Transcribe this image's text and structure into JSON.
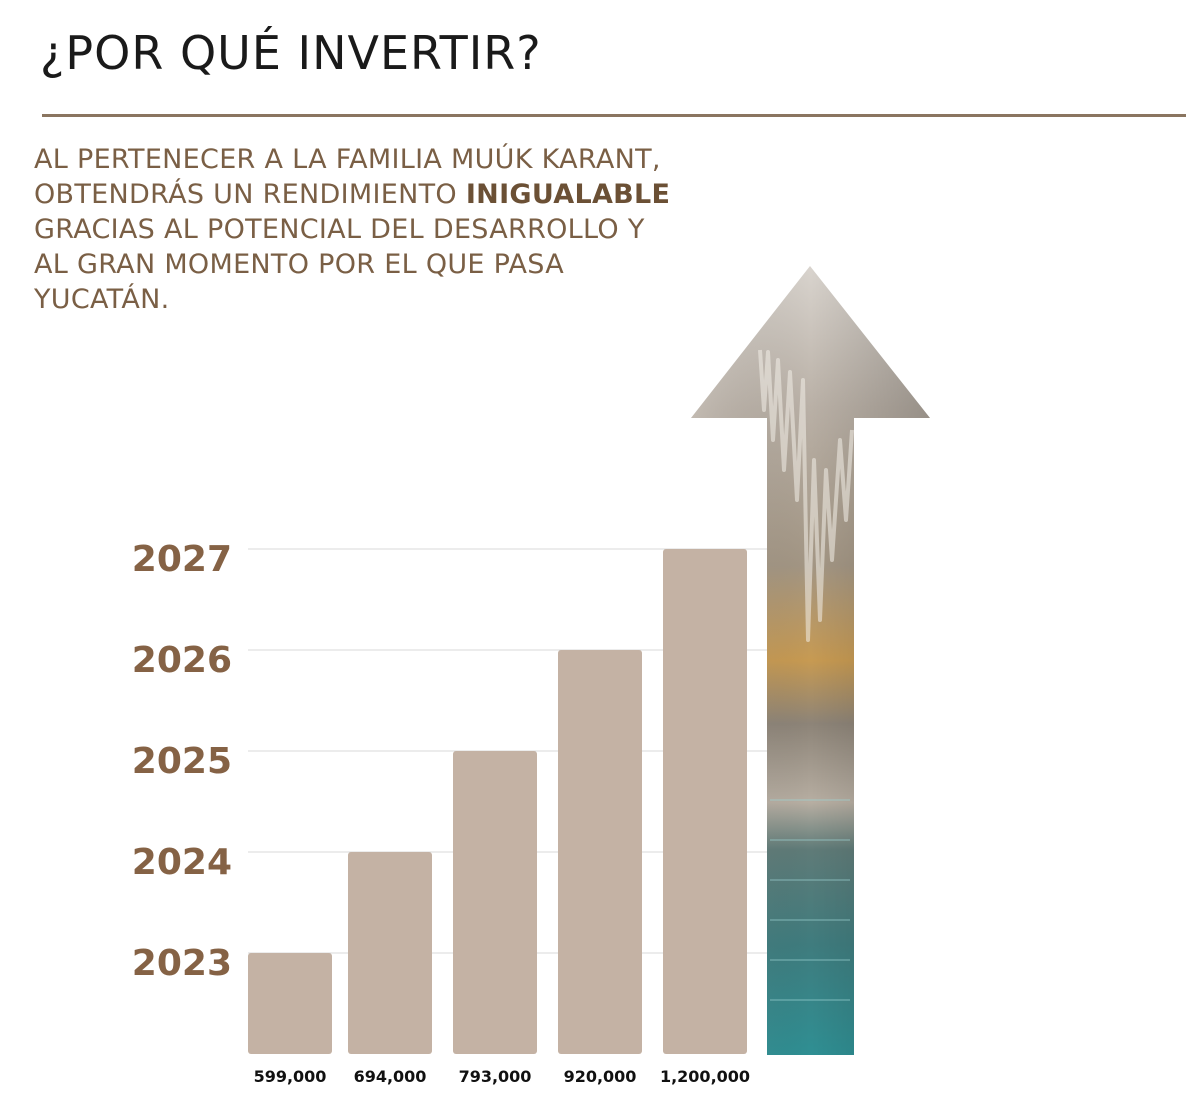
{
  "title": "¿POR QUÉ INVERTIR?",
  "intro": {
    "before": "AL PERTENECER A LA FAMILIA MUÚK KARANT, OBTENDRÁS  UN RENDIMIENTO ",
    "highlight": "INIGUALABLE",
    "after": " GRACIAS AL POTENCIAL DEL DESARROLLO Y AL GRAN MOMENTO POR EL QUE PASA YUCATÁN."
  },
  "colors": {
    "bar": "#c4b2a4",
    "grid": "#d9d9d9",
    "year_text": "#856245",
    "accent_rule": "#8a7560"
  },
  "arrow_image": "cave-cenote-arrow",
  "chart_data": {
    "type": "bar",
    "categories": [
      "2023",
      "2024",
      "2025",
      "2026",
      "2027"
    ],
    "values": [
      599000,
      694000,
      793000,
      920000,
      1200000
    ],
    "value_labels": [
      "599,000",
      "694,000",
      "793,000",
      "920,000",
      "1,200,000"
    ],
    "y_tick_labels": [
      "2023",
      "2024",
      "2025",
      "2026",
      "2027"
    ],
    "grid": true,
    "title": "",
    "xlabel": "",
    "ylabel": ""
  }
}
